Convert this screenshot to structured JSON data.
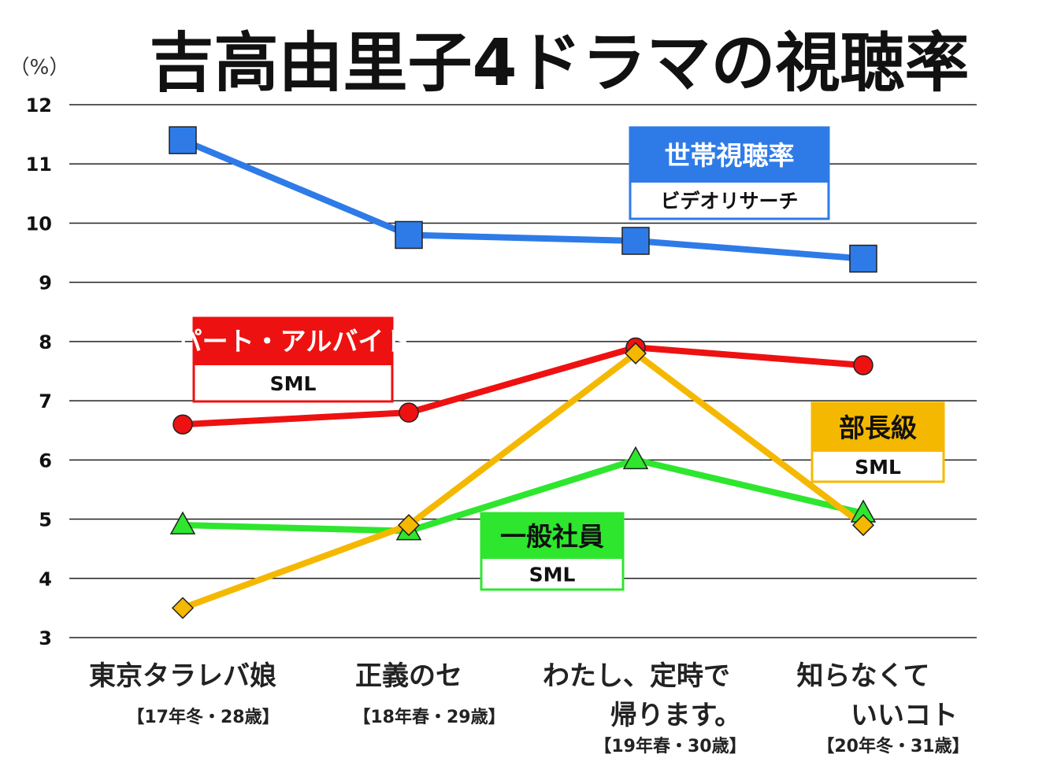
{
  "chart_data": {
    "type": "line",
    "title": "吉高由里子4ドラマの視聴率",
    "unit_label": "（%）",
    "ylim": [
      3,
      12
    ],
    "yticks": [
      "12",
      "11",
      "10",
      "9",
      "8",
      "7",
      "6",
      "5",
      "4",
      "3"
    ],
    "grid": true,
    "categories": [
      {
        "name_lines": [
          "東京タラレバ娘"
        ],
        "sub": "【17年冬・28歳】"
      },
      {
        "name_lines": [
          "正義のセ"
        ],
        "sub": "【18年春・29歳】"
      },
      {
        "name_lines": [
          "わたし、定時で",
          "帰ります。"
        ],
        "sub": "【19年春・30歳】"
      },
      {
        "name_lines": [
          "知らなくて",
          "いいコト"
        ],
        "sub": "【20年冬・31歳】"
      }
    ],
    "series": [
      {
        "name": "世帯視聴率",
        "source": "ビデオリサーチ",
        "values": [
          11.4,
          9.8,
          9.7,
          9.4
        ],
        "color": "#2e7be8",
        "marker": "square",
        "box_fill": "#2e7be8",
        "box_border": "#2e7be8",
        "title_color": "#ffffff"
      },
      {
        "name": "パート・アルバイト",
        "source": "SML",
        "values": [
          6.6,
          6.8,
          7.9,
          7.6
        ],
        "color": "#ee1111",
        "marker": "circle",
        "box_fill": "#ee1111",
        "box_border": "#ee1111",
        "title_color": "#ffffff"
      },
      {
        "name": "一般社員",
        "source": "SML",
        "values": [
          4.9,
          4.8,
          6.0,
          5.1
        ],
        "color": "#2ee62e",
        "marker": "triangle",
        "box_fill": "#2ee62e",
        "box_border": "#2ee62e",
        "title_color": "#111111"
      },
      {
        "name": "部長級",
        "source": "SML",
        "values": [
          3.5,
          4.9,
          7.8,
          4.9
        ],
        "color": "#f5b800",
        "marker": "diamond",
        "box_fill": "#f5b800",
        "box_border": "#f5b800",
        "title_color": "#111111"
      }
    ]
  }
}
